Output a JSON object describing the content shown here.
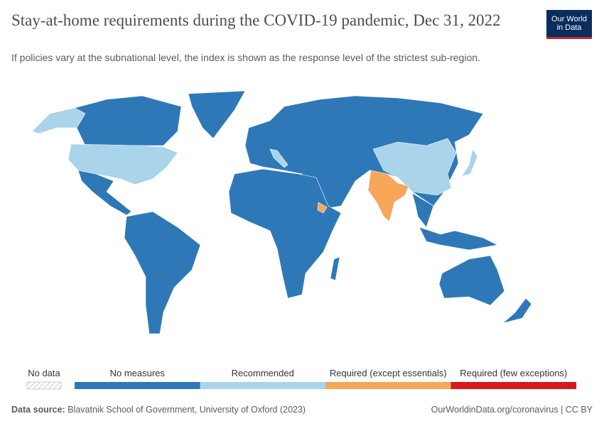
{
  "header": {
    "title": "Stay-at-home requirements during the COVID-19 pandemic, Dec 31, 2022",
    "subtitle": "If policies vary at the subnational level, the index is shown as the response level of the strictest sub-region.",
    "logo": [
      "Our World",
      "in Data"
    ]
  },
  "legend": {
    "no_data": "No data",
    "items": [
      {
        "label": "No measures",
        "color": "#2e78b8"
      },
      {
        "label": "Recommended",
        "color": "#a9d4ea"
      },
      {
        "label": "Required (except essentials)",
        "color": "#f7a65a"
      },
      {
        "label": "Required (few exceptions)",
        "color": "#d7191c"
      }
    ]
  },
  "footer": {
    "source_label": "Data source:",
    "source": "Blavatnik School of Government, University of Oxford (2023)",
    "url": "OurWorldinData.org/coronavirus | CC BY"
  }
}
